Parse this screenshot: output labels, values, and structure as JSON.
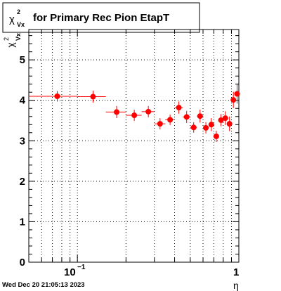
{
  "title": {
    "symbol": "χ",
    "superscript": "2",
    "subscript": "Vx",
    "text": "for Primary Rec Pion EtapT"
  },
  "footer": {
    "timestamp": "Wed Dec 20 21:05:13 2023"
  },
  "chart_data": {
    "type": "scatter",
    "title": "χ²_Vx for Primary Rec Pion EtapT",
    "xlabel": "η",
    "ylabel": "χ²_Vx",
    "xscale": "log",
    "xlim": [
      0.05,
      1.0
    ],
    "ylim": [
      0,
      5.75
    ],
    "grid": true,
    "x_tick_labels": [
      {
        "value": 0.1,
        "base": "10",
        "exp": "−1"
      },
      {
        "value": 1,
        "base": "1",
        "exp": ""
      }
    ],
    "y_ticks": [
      0,
      1,
      2,
      3,
      4,
      5
    ],
    "marker_color": "#ff0000",
    "points": [
      {
        "x": 0.075,
        "y": 4.1,
        "xlo": 0.05,
        "xhi": 0.1,
        "err": 0.13
      },
      {
        "x": 0.125,
        "y": 4.09,
        "xlo": 0.1,
        "xhi": 0.15,
        "err": 0.15
      },
      {
        "x": 0.175,
        "y": 3.71,
        "xlo": 0.15,
        "xhi": 0.2,
        "err": 0.15
      },
      {
        "x": 0.225,
        "y": 3.63,
        "xlo": 0.2,
        "xhi": 0.25,
        "err": 0.14
      },
      {
        "x": 0.275,
        "y": 3.72,
        "xlo": 0.25,
        "xhi": 0.3,
        "err": 0.14
      },
      {
        "x": 0.325,
        "y": 3.42,
        "xlo": 0.3,
        "xhi": 0.35,
        "err": 0.14
      },
      {
        "x": 0.375,
        "y": 3.52,
        "xlo": 0.35,
        "xhi": 0.4,
        "err": 0.13
      },
      {
        "x": 0.425,
        "y": 3.82,
        "xlo": 0.4,
        "xhi": 0.45,
        "err": 0.15
      },
      {
        "x": 0.475,
        "y": 3.59,
        "xlo": 0.45,
        "xhi": 0.5,
        "err": 0.15
      },
      {
        "x": 0.525,
        "y": 3.33,
        "xlo": 0.5,
        "xhi": 0.55,
        "err": 0.13
      },
      {
        "x": 0.575,
        "y": 3.61,
        "xlo": 0.55,
        "xhi": 0.6,
        "err": 0.16
      },
      {
        "x": 0.625,
        "y": 3.32,
        "xlo": 0.6,
        "xhi": 0.65,
        "err": 0.14
      },
      {
        "x": 0.675,
        "y": 3.4,
        "xlo": 0.65,
        "xhi": 0.7,
        "err": 0.16
      },
      {
        "x": 0.725,
        "y": 3.11,
        "xlo": 0.7,
        "xhi": 0.75,
        "err": 0.14
      },
      {
        "x": 0.775,
        "y": 3.51,
        "xlo": 0.75,
        "xhi": 0.8,
        "err": 0.15
      },
      {
        "x": 0.825,
        "y": 3.56,
        "xlo": 0.8,
        "xhi": 0.85,
        "err": 0.17
      },
      {
        "x": 0.875,
        "y": 3.42,
        "xlo": 0.85,
        "xhi": 0.9,
        "err": 0.18
      },
      {
        "x": 0.925,
        "y": 4.01,
        "xlo": 0.9,
        "xhi": 0.95,
        "err": 0.2
      },
      {
        "x": 0.975,
        "y": 4.16,
        "xlo": 0.95,
        "xhi": 1.0,
        "err": 0.24
      }
    ]
  }
}
